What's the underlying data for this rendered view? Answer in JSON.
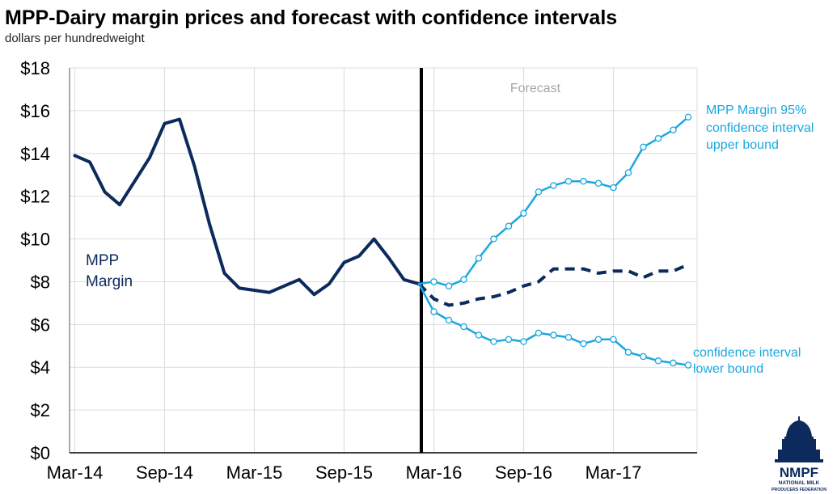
{
  "chart_data": {
    "type": "line",
    "title": "MPP-Dairy margin prices and forecast with confidence intervals",
    "subtitle": "dollars per hundredweight",
    "x_tick_labels": [
      "Mar-14",
      "Sep-14",
      "Mar-15",
      "Sep-15",
      "Mar-16",
      "Sep-16",
      "Mar-17"
    ],
    "y_tick_labels": [
      "$0",
      "$2",
      "$4",
      "$6",
      "$8",
      "$10",
      "$12",
      "$14",
      "$16",
      "$18"
    ],
    "ylim": [
      0,
      18
    ],
    "grid": true,
    "forecast_label": "Forecast",
    "forecast_start": "Feb-16",
    "series": [
      {
        "name": "MPP Margin",
        "label_lines": [
          "MPP",
          "Margin"
        ],
        "color": "#0d2a5c",
        "style": "solid",
        "x": [
          "Mar-14",
          "Apr-14",
          "May-14",
          "Jun-14",
          "Jul-14",
          "Aug-14",
          "Sep-14",
          "Oct-14",
          "Nov-14",
          "Dec-14",
          "Jan-15",
          "Feb-15",
          "Mar-15",
          "Apr-15",
          "May-15",
          "Jun-15",
          "Jul-15",
          "Aug-15",
          "Sep-15",
          "Oct-15",
          "Nov-15",
          "Dec-15",
          "Jan-16",
          "Feb-16"
        ],
        "values": [
          13.9,
          13.6,
          12.2,
          11.6,
          12.7,
          13.8,
          15.4,
          15.6,
          13.4,
          10.7,
          8.4,
          7.7,
          7.6,
          7.5,
          7.8,
          8.1,
          7.4,
          7.9,
          8.9,
          9.2,
          10.0,
          9.1,
          8.1,
          7.9
        ]
      },
      {
        "name": "MPP Margin forecast",
        "color": "#0d2a5c",
        "style": "dashed",
        "x": [
          "Feb-16",
          "Mar-16",
          "Apr-16",
          "May-16",
          "Jun-16",
          "Jul-16",
          "Aug-16",
          "Sep-16",
          "Oct-16",
          "Nov-16",
          "Dec-16",
          "Jan-17",
          "Feb-17",
          "Mar-17",
          "Apr-17",
          "May-17",
          "Jun-17",
          "Jul-17",
          "Aug-17"
        ],
        "values": [
          7.9,
          7.2,
          6.9,
          7.0,
          7.2,
          7.3,
          7.5,
          7.8,
          8.0,
          8.6,
          8.6,
          8.6,
          8.4,
          8.5,
          8.5,
          8.2,
          8.5,
          8.5,
          8.8
        ]
      },
      {
        "name": "MPP Margin 95% confidence interval upper bound",
        "label_lines": [
          "MPP Margin 95%",
          "confidence interval",
          "upper bound"
        ],
        "color": "#1aa7e0",
        "style": "solid-markers",
        "x": [
          "Feb-16",
          "Mar-16",
          "Apr-16",
          "May-16",
          "Jun-16",
          "Jul-16",
          "Aug-16",
          "Sep-16",
          "Oct-16",
          "Nov-16",
          "Dec-16",
          "Jan-17",
          "Feb-17",
          "Mar-17",
          "Apr-17",
          "May-17",
          "Jun-17",
          "Jul-17",
          "Aug-17"
        ],
        "values": [
          7.9,
          8.0,
          7.8,
          8.1,
          9.1,
          10.0,
          10.6,
          11.2,
          12.2,
          12.5,
          12.7,
          12.7,
          12.6,
          12.4,
          13.1,
          14.3,
          14.7,
          15.1,
          15.7
        ]
      },
      {
        "name": "confidence interval lower bound",
        "label_lines": [
          "confidence interval",
          "lower bound"
        ],
        "color": "#1aa7e0",
        "style": "solid-markers",
        "x": [
          "Feb-16",
          "Mar-16",
          "Apr-16",
          "May-16",
          "Jun-16",
          "Jul-16",
          "Aug-16",
          "Sep-16",
          "Oct-16",
          "Nov-16",
          "Dec-16",
          "Jan-17",
          "Feb-17",
          "Mar-17",
          "Apr-17",
          "May-17",
          "Jun-17",
          "Jul-17",
          "Aug-17"
        ],
        "values": [
          7.9,
          6.6,
          6.2,
          5.9,
          5.5,
          5.2,
          5.3,
          5.2,
          5.6,
          5.5,
          5.4,
          5.1,
          5.3,
          5.3,
          4.7,
          4.5,
          4.3,
          4.2,
          4.1
        ]
      }
    ]
  },
  "logo": {
    "name": "NMPF",
    "tagline_lines": [
      "NATIONAL MILK",
      "PRODUCERS FEDERATION"
    ],
    "color": "#0d2a5c"
  }
}
